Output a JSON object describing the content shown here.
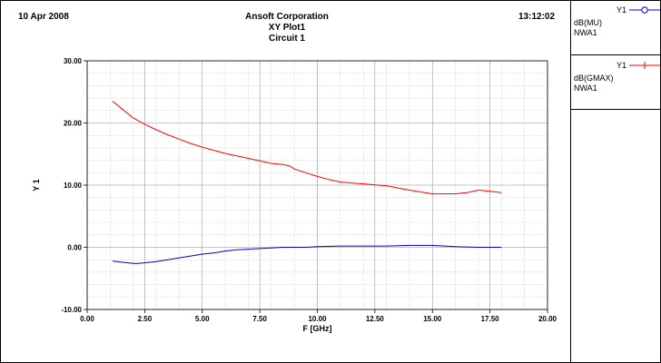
{
  "header": {
    "date": "10 Apr 2008",
    "time": "13:12:02",
    "company": "Ansoft Corporation",
    "plot_name": "XY Plot1",
    "circuit": "Circuit 1"
  },
  "legend": [
    {
      "axis": "Y1",
      "name": "dB(MU)",
      "sub": "NWA1",
      "color": "#0000cc",
      "marker": "circle-icon"
    },
    {
      "axis": "Y1",
      "name": "dB(GMAX)",
      "sub": "NWA1",
      "color": "#ff0000",
      "marker": "plus-icon"
    }
  ],
  "chart_data": {
    "type": "line",
    "xlabel": "F [GHz]",
    "ylabel": "Y 1",
    "xlim": [
      0,
      20
    ],
    "ylim": [
      -10,
      30
    ],
    "grid": true,
    "x_ticks": [
      "0.00",
      "2.50",
      "5.00",
      "7.50",
      "10.00",
      "12.50",
      "15.00",
      "17.50",
      "20.00"
    ],
    "y_ticks": [
      "30.00",
      "20.00",
      "10.00",
      "0.00",
      "-10.00"
    ],
    "series": [
      {
        "name": "dB(MU)",
        "color": "#0000cc",
        "x": [
          1.1,
          1.5,
          2.0,
          2.2,
          2.5,
          3.0,
          3.5,
          4.0,
          4.5,
          5.0,
          5.5,
          6.0,
          6.5,
          7.0,
          7.5,
          8.0,
          8.5,
          9.0,
          9.5,
          10.0,
          11.0,
          12.0,
          13.0,
          14.0,
          15.0,
          16.0,
          17.0,
          18.0
        ],
        "y": [
          -2.2,
          -2.4,
          -2.6,
          -2.6,
          -2.5,
          -2.3,
          -2.0,
          -1.7,
          -1.4,
          -1.1,
          -0.9,
          -0.6,
          -0.4,
          -0.3,
          -0.2,
          -0.1,
          0.0,
          0.0,
          0.0,
          0.1,
          0.2,
          0.2,
          0.2,
          0.3,
          0.3,
          0.1,
          0.0,
          0.0
        ]
      },
      {
        "name": "dB(GMAX)",
        "color": "#ff0000",
        "x": [
          1.1,
          1.5,
          2.0,
          2.5,
          3.0,
          3.5,
          4.0,
          4.5,
          5.0,
          5.5,
          6.0,
          6.5,
          7.0,
          7.5,
          8.0,
          8.5,
          8.8,
          9.0,
          9.5,
          10.0,
          10.5,
          11.0,
          12.0,
          13.0,
          14.0,
          15.0,
          16.0,
          16.5,
          17.0,
          17.5,
          18.0
        ],
        "y": [
          23.5,
          22.3,
          20.8,
          19.8,
          18.9,
          18.1,
          17.4,
          16.7,
          16.1,
          15.6,
          15.1,
          14.7,
          14.3,
          13.9,
          13.5,
          13.3,
          13.1,
          12.6,
          12.0,
          11.4,
          10.9,
          10.5,
          10.2,
          9.9,
          9.2,
          8.6,
          8.6,
          8.8,
          9.2,
          9.0,
          8.8
        ]
      }
    ]
  }
}
